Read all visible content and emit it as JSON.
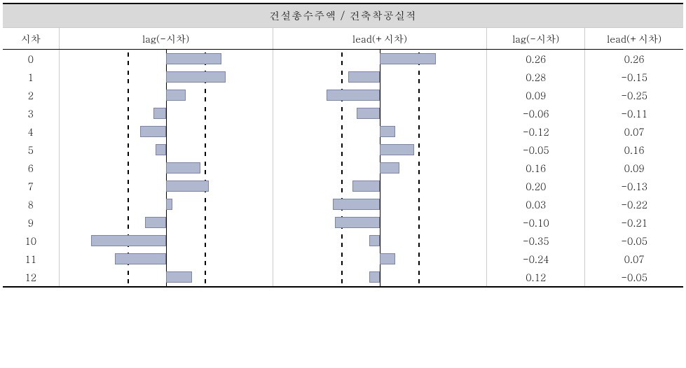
{
  "title": "건설총수주액 / 건축착공실적",
  "headers": {
    "col_idx": "시차",
    "col_lag_chart": "lag(-시차)",
    "col_lead_chart": "lead(+시차)",
    "col_lag_val": "lag(-시차)",
    "col_lead_val": "lead(+시차)"
  },
  "chart": {
    "range": 0.5,
    "ref_offset": 0.18,
    "bar_color": "#b0b8d0",
    "bar_border": "#7a85a8",
    "ref_dash_color": "#000000",
    "center_line_color": "#000000"
  },
  "rows": [
    {
      "idx": "0",
      "lag": 0.26,
      "lead": 0.26,
      "lag_txt": "0.26",
      "lead_txt": "0.26"
    },
    {
      "idx": "1",
      "lag": 0.28,
      "lead": -0.15,
      "lag_txt": "0.28",
      "lead_txt": "-0.15"
    },
    {
      "idx": "2",
      "lag": 0.09,
      "lead": -0.25,
      "lag_txt": "0.09",
      "lead_txt": "-0.25"
    },
    {
      "idx": "3",
      "lag": -0.06,
      "lead": -0.11,
      "lag_txt": "-0.06",
      "lead_txt": "-0.11"
    },
    {
      "idx": "4",
      "lag": -0.12,
      "lead": 0.07,
      "lag_txt": "-0.12",
      "lead_txt": "0.07"
    },
    {
      "idx": "5",
      "lag": -0.05,
      "lead": 0.16,
      "lag_txt": "-0.05",
      "lead_txt": "0.16"
    },
    {
      "idx": "6",
      "lag": 0.16,
      "lead": 0.09,
      "lag_txt": "0.16",
      "lead_txt": "0.09"
    },
    {
      "idx": "7",
      "lag": 0.2,
      "lead": -0.13,
      "lag_txt": "0.20",
      "lead_txt": "-0.13"
    },
    {
      "idx": "8",
      "lag": 0.03,
      "lead": -0.22,
      "lag_txt": "0.03",
      "lead_txt": "-0.22"
    },
    {
      "idx": "9",
      "lag": -0.1,
      "lead": -0.21,
      "lag_txt": "-0.10",
      "lead_txt": "-0.21"
    },
    {
      "idx": "10",
      "lag": -0.35,
      "lead": -0.05,
      "lag_txt": "-0.35",
      "lead_txt": "-0.05"
    },
    {
      "idx": "11",
      "lag": -0.24,
      "lead": 0.07,
      "lag_txt": "-0.24",
      "lead_txt": "0.07"
    },
    {
      "idx": "12",
      "lag": 0.12,
      "lead": -0.05,
      "lag_txt": "0.12",
      "lead_txt": "-0.05"
    }
  ]
}
